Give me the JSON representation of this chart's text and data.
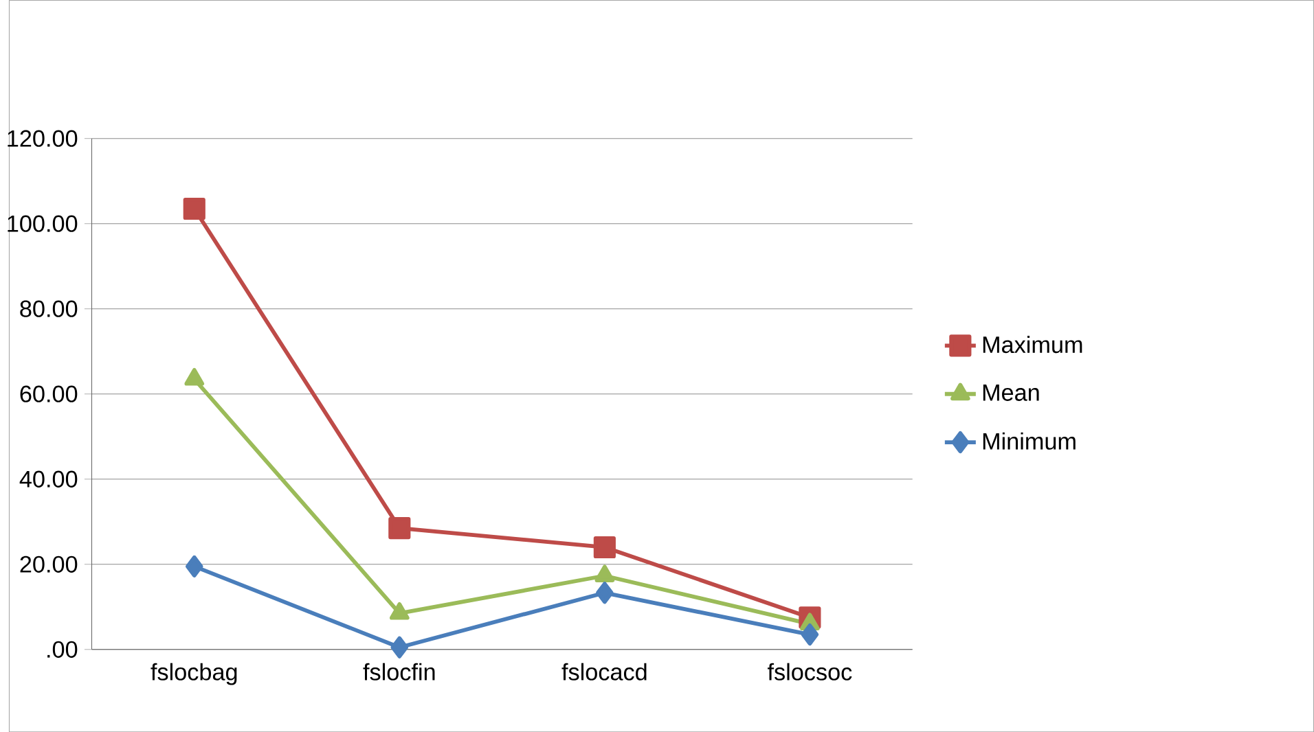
{
  "chart_data": {
    "type": "line",
    "categories": [
      "fslocbag",
      "fslocfin",
      "fslocacd",
      "fslocsoc"
    ],
    "series": [
      {
        "name": "Maximum",
        "color": "#be4b48",
        "marker": "square",
        "values": [
          103.5,
          28.5,
          24,
          7.5
        ]
      },
      {
        "name": "Mean",
        "color": "#9bbb59",
        "marker": "triangle",
        "values": [
          63.5,
          8.5,
          17.3,
          6
        ]
      },
      {
        "name": "Minimum",
        "color": "#4a7ebb",
        "marker": "diamond",
        "values": [
          19.5,
          0.5,
          13.3,
          3.5
        ]
      }
    ],
    "ylim": [
      0,
      120
    ],
    "yticks": [
      {
        "value": 0,
        "label": ".00"
      },
      {
        "value": 20,
        "label": "20.00"
      },
      {
        "value": 40,
        "label": "40.00"
      },
      {
        "value": 60,
        "label": "60.00"
      },
      {
        "value": 80,
        "label": "80.00"
      },
      {
        "value": 100,
        "label": "100.00"
      },
      {
        "value": 120,
        "label": "120.00"
      }
    ],
    "grid": "y",
    "legend": "right",
    "line_style": "solid"
  }
}
